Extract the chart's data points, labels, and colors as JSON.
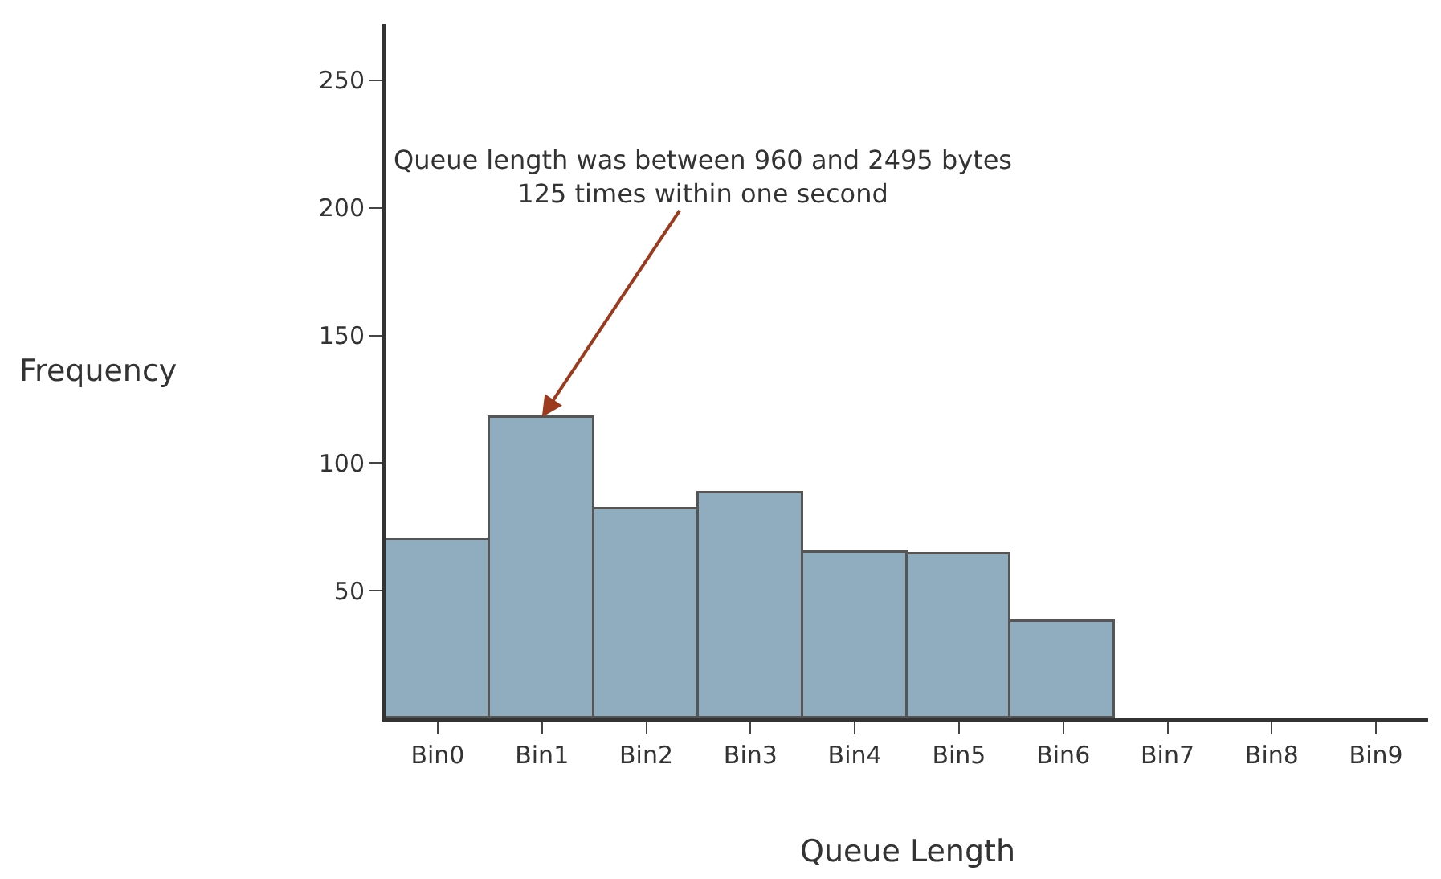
{
  "chart_data": {
    "type": "bar",
    "xlabel": "Queue Length",
    "ylabel": "Frequency",
    "categories": [
      "Bin0",
      "Bin1",
      "Bin2",
      "Bin3",
      "Bin4",
      "Bin5",
      "Bin6",
      "Bin7",
      "Bin8",
      "Bin9"
    ],
    "values": [
      70,
      118,
      82,
      88,
      65,
      64,
      38,
      0,
      0,
      0
    ],
    "color": "#8fadbf",
    "ylim": [
      0,
      272
    ],
    "yticks": [
      50,
      100,
      150,
      200,
      250
    ],
    "annotations": [
      {
        "text": "Queue length was between 960 and 2495 bytes\n125 times within one second",
        "x": "Bin1",
        "y": 118
      }
    ]
  }
}
